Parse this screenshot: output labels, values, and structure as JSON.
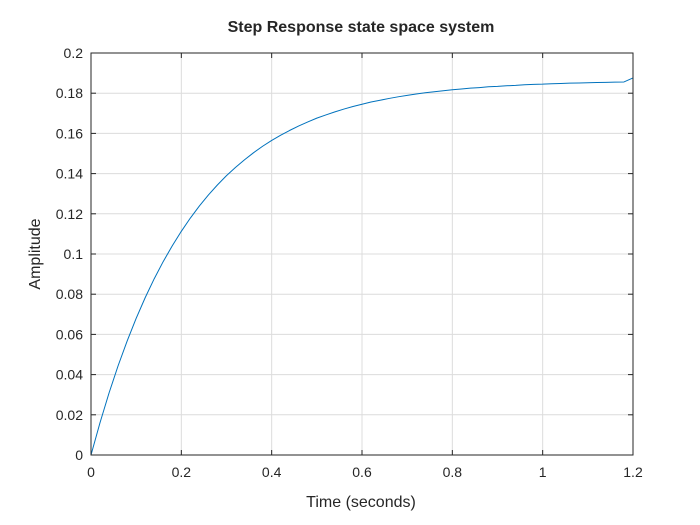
{
  "chart_data": {
    "type": "line",
    "title": "Step Response state space system",
    "xlabel": "Time (seconds)",
    "ylabel": "Amplitude",
    "xlim": [
      0,
      1.2
    ],
    "ylim": [
      0,
      0.2
    ],
    "grid": true,
    "x_ticks": [
      0,
      0.2,
      0.4,
      0.6,
      0.8,
      1,
      1.2
    ],
    "x_tick_labels": [
      "0",
      "0.2",
      "0.4",
      "0.6",
      "0.8",
      "1",
      "1.2"
    ],
    "y_ticks": [
      0,
      0.02,
      0.04,
      0.06,
      0.08,
      0.1,
      0.12,
      0.14,
      0.16,
      0.18,
      0.2
    ],
    "y_tick_labels": [
      "0",
      "0.02",
      "0.04",
      "0.06",
      "0.08",
      "0.1",
      "0.12",
      "0.14",
      "0.16",
      "0.18",
      "0.2"
    ],
    "series": [
      {
        "color": "#0072BD",
        "x": [
          0,
          0.02,
          0.04,
          0.06,
          0.08,
          0.1,
          0.12,
          0.14,
          0.16,
          0.18,
          0.2,
          0.22,
          0.24,
          0.26,
          0.28,
          0.3,
          0.32,
          0.34,
          0.36,
          0.38,
          0.4,
          0.42,
          0.44,
          0.46,
          0.48,
          0.5,
          0.52,
          0.54,
          0.56,
          0.58,
          0.6,
          0.62,
          0.64,
          0.66,
          0.68,
          0.7,
          0.72,
          0.74,
          0.76,
          0.78,
          0.8,
          0.82,
          0.84,
          0.86,
          0.88,
          0.9,
          0.92,
          0.94,
          0.96,
          0.98,
          1,
          1.02,
          1.04,
          1.06,
          1.08,
          1.1,
          1.12,
          1.14,
          1.16,
          1.18,
          1.2
        ],
        "y": [
          0,
          0.0161,
          0.0309,
          0.0444,
          0.0567,
          0.068,
          0.0783,
          0.0877,
          0.0963,
          0.1041,
          0.1113,
          0.1179,
          0.1239,
          0.1294,
          0.1344,
          0.139,
          0.1431,
          0.1469,
          0.1504,
          0.1536,
          0.1565,
          0.1591,
          0.1615,
          0.1637,
          0.1657,
          0.1676,
          0.1692,
          0.1707,
          0.1721,
          0.1734,
          0.1745,
          0.1756,
          0.1765,
          0.1774,
          0.1782,
          0.1789,
          0.1796,
          0.1802,
          0.1807,
          0.1812,
          0.1817,
          0.1821,
          0.1825,
          0.1828,
          0.1832,
          0.1834,
          0.1837,
          0.1839,
          0.1842,
          0.1844,
          0.1845,
          0.1847,
          0.1848,
          0.185,
          0.1851,
          0.1852,
          0.1853,
          0.1854,
          0.1855,
          0.1856,
          0.1876
        ]
      }
    ]
  }
}
